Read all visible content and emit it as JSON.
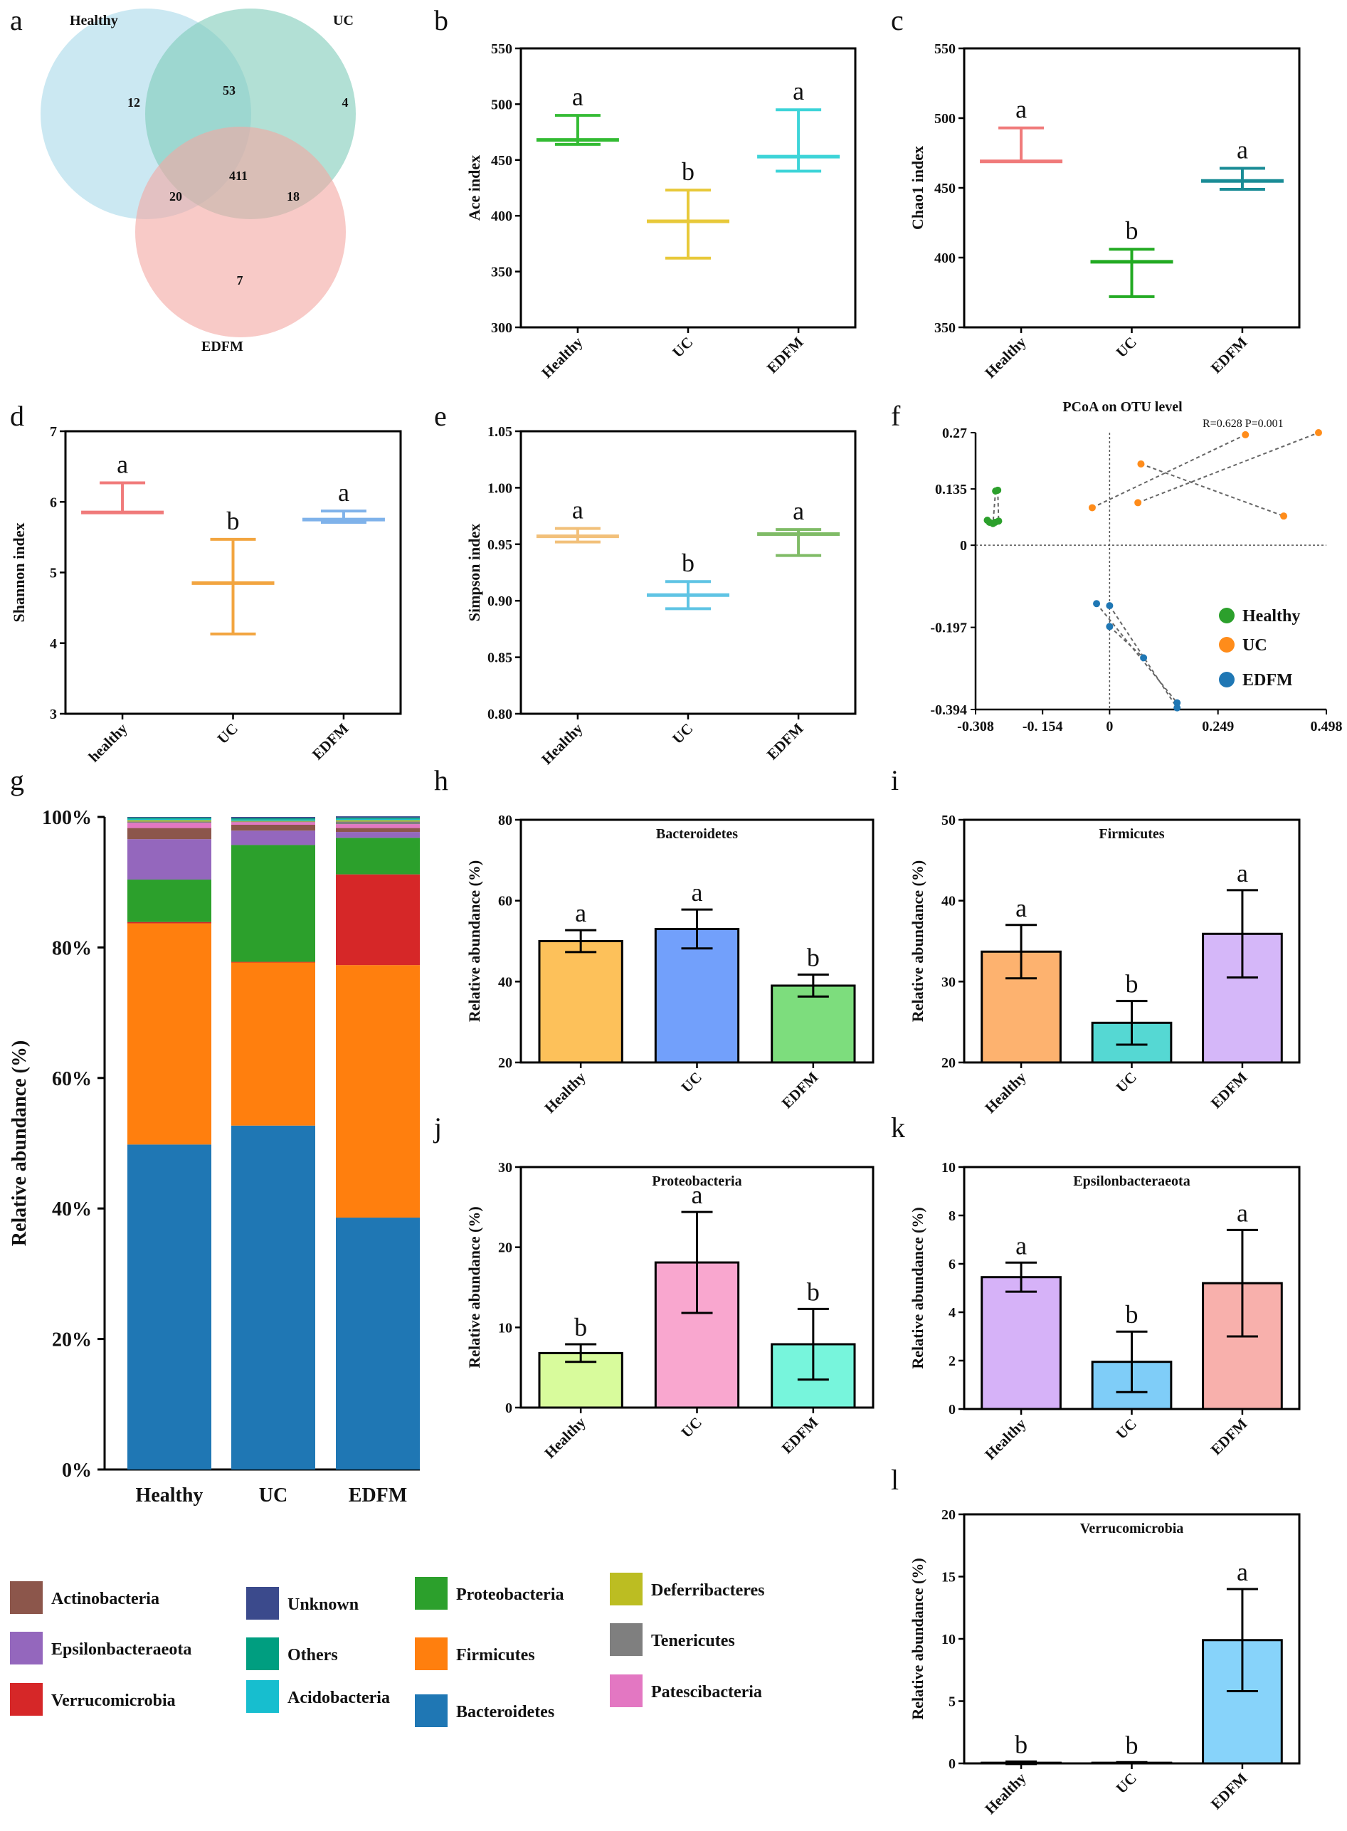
{
  "panel_labels": [
    "a",
    "b",
    "c",
    "d",
    "e",
    "f",
    "g",
    "h",
    "i",
    "j",
    "k",
    "l"
  ],
  "chart_data": [
    {
      "panel": "a",
      "type": "venn",
      "sets": [
        "Healthy",
        "UC",
        "EDFM"
      ],
      "regions": {
        "healthy_only": 12,
        "healthy_uc": 53,
        "uc_only": 4,
        "healthy_edfm": 20,
        "all": 411,
        "uc_edfm": 18,
        "edfm_only": 7
      },
      "colors": {
        "Healthy": "#a9d8ea",
        "UC": "#7fccb9",
        "EDFM": "#f4a7a1"
      }
    },
    {
      "panel": "b",
      "type": "errorbar",
      "ylabel": "Ace index",
      "ylim": [
        300,
        550
      ],
      "yticks": [
        300,
        350,
        400,
        450,
        500,
        550
      ],
      "categories": [
        "Healthy",
        "UC",
        "EDFM"
      ],
      "series": [
        {
          "name": "Healthy",
          "mean": 468,
          "low": 464,
          "high": 490,
          "color": "#33bb33",
          "letter": "a"
        },
        {
          "name": "UC",
          "mean": 395,
          "low": 362,
          "high": 423,
          "color": "#e8c93a",
          "letter": "b"
        },
        {
          "name": "EDFM",
          "mean": 453,
          "low": 440,
          "high": 495,
          "color": "#3dd4d8",
          "letter": "a"
        }
      ]
    },
    {
      "panel": "c",
      "type": "errorbar",
      "ylabel": "Chao1 index",
      "ylim": [
        350,
        550
      ],
      "yticks": [
        350,
        400,
        450,
        500,
        550
      ],
      "categories": [
        "Healthy",
        "UC",
        "EDFM"
      ],
      "series": [
        {
          "name": "Healthy",
          "mean": 469,
          "low": 469,
          "high": 493,
          "color": "#f07a7a",
          "letter": "a"
        },
        {
          "name": "UC",
          "mean": 397,
          "low": 372,
          "high": 406,
          "color": "#22aa22",
          "letter": "b"
        },
        {
          "name": "EDFM",
          "mean": 455,
          "low": 449,
          "high": 464,
          "color": "#1a8c96",
          "letter": "a"
        }
      ]
    },
    {
      "panel": "d",
      "type": "errorbar",
      "ylabel": "Shannon index",
      "ylim": [
        3,
        7
      ],
      "yticks": [
        3,
        4,
        5,
        6,
        7
      ],
      "categories": [
        "healthy",
        "UC",
        "EDFM"
      ],
      "series": [
        {
          "name": "healthy",
          "mean": 5.85,
          "low": 5.85,
          "high": 6.27,
          "color": "#f07a7a",
          "letter": "a"
        },
        {
          "name": "UC",
          "mean": 4.85,
          "low": 4.13,
          "high": 5.47,
          "color": "#f2a540",
          "letter": "b"
        },
        {
          "name": "EDFM",
          "mean": 5.75,
          "low": 5.71,
          "high": 5.87,
          "color": "#7fb2ea",
          "letter": "a"
        }
      ]
    },
    {
      "panel": "e",
      "type": "errorbar",
      "ylabel": "Simpson index",
      "ylim": [
        0.8,
        1.05
      ],
      "yticks": [
        0.8,
        0.85,
        0.9,
        0.95,
        1.0,
        1.05
      ],
      "ytick_labels": [
        "0.80",
        "0.85",
        "0.90",
        "0.95",
        "1.00",
        "1.05"
      ],
      "categories": [
        "Healthy",
        "UC",
        "EDFM"
      ],
      "series": [
        {
          "name": "Healthy",
          "mean": 0.957,
          "low": 0.952,
          "high": 0.964,
          "color": "#f2c07a",
          "letter": "a"
        },
        {
          "name": "UC",
          "mean": 0.905,
          "low": 0.893,
          "high": 0.917,
          "color": "#5fc4e4",
          "letter": "b"
        },
        {
          "name": "EDFM",
          "mean": 0.959,
          "low": 0.94,
          "high": 0.963,
          "color": "#7fbb66",
          "letter": "a"
        }
      ]
    },
    {
      "panel": "f",
      "type": "scatter",
      "title": "PCoA on OTU level",
      "annotation": "R=0.628   P=0.001",
      "xlim": [
        -0.308,
        0.498
      ],
      "ylim": [
        -0.394,
        0.27
      ],
      "xticks": [
        -0.308,
        -0.154,
        0,
        0.249,
        0.498
      ],
      "xtick_labels": [
        "-0.308",
        "-0. 154",
        "0",
        "0.249",
        "0.498"
      ],
      "yticks": [
        0.27,
        0.135,
        0,
        -0.197,
        -0.394
      ],
      "ytick_labels": [
        "0.27",
        "0.135",
        "0",
        "-0.197",
        "-0.394"
      ],
      "legend": [
        "Healthy",
        "UC",
        "EDFM"
      ],
      "series": [
        {
          "name": "Healthy",
          "color": "#2ca02c",
          "points": [
            [
              -0.281,
              0.06
            ],
            [
              -0.276,
              0.055
            ],
            [
              -0.268,
              0.052
            ],
            [
              -0.263,
              0.055
            ],
            [
              -0.255,
              0.058
            ],
            [
              -0.262,
              0.13
            ],
            [
              -0.257,
              0.132
            ]
          ]
        },
        {
          "name": "UC",
          "color": "#ff8c1a",
          "points": [
            [
              -0.04,
              0.09
            ],
            [
              0.072,
              0.195
            ],
            [
              0.065,
              0.102
            ],
            [
              0.312,
              0.265
            ],
            [
              0.48,
              0.27
            ],
            [
              0.4,
              0.07
            ]
          ]
        },
        {
          "name": "EDFM",
          "color": "#1f77b4",
          "points": [
            [
              -0.03,
              -0.14
            ],
            [
              0.0,
              -0.145
            ],
            [
              0.0,
              -0.195
            ],
            [
              0.078,
              -0.27
            ],
            [
              0.155,
              -0.378
            ],
            [
              0.155,
              -0.39
            ]
          ]
        }
      ],
      "links": [
        [
          [
            -0.262,
            0.13
          ],
          [
            -0.268,
            0.052
          ]
        ],
        [
          [
            -0.257,
            0.132
          ],
          [
            -0.255,
            0.058
          ]
        ],
        [
          [
            -0.04,
            0.09
          ],
          [
            0.312,
            0.265
          ]
        ],
        [
          [
            0.072,
            0.195
          ],
          [
            0.4,
            0.07
          ]
        ],
        [
          [
            0.065,
            0.102
          ],
          [
            0.48,
            0.27
          ]
        ],
        [
          [
            -0.03,
            -0.14
          ],
          [
            0.155,
            -0.378
          ]
        ],
        [
          [
            0.0,
            -0.145
          ],
          [
            0.155,
            -0.39
          ]
        ],
        [
          [
            0.0,
            -0.195
          ],
          [
            0.078,
            -0.27
          ]
        ]
      ]
    },
    {
      "panel": "g",
      "type": "stacked_bar",
      "ylabel": "Relative abundance (%)",
      "ylim": [
        0,
        100
      ],
      "yticks": [
        0,
        20,
        40,
        60,
        80,
        100
      ],
      "ytick_labels": [
        "0%",
        "20%",
        "40%",
        "60%",
        "80%",
        "100%"
      ],
      "categories": [
        "Healthy",
        "UC",
        "EDFM"
      ],
      "series": [
        {
          "name": "Bacteroidetes",
          "color": "#1f77b4",
          "values": [
            49.8,
            52.7,
            38.6
          ]
        },
        {
          "name": "Firmicutes",
          "color": "#ff7f0e",
          "values": [
            33.9,
            25.0,
            38.7
          ]
        },
        {
          "name": "Verrucomicrobia",
          "color": "#d62728",
          "values": [
            0.2,
            0.1,
            13.9
          ]
        },
        {
          "name": "Proteobacteria",
          "color": "#2ca02c",
          "values": [
            6.5,
            17.9,
            5.6
          ]
        },
        {
          "name": "Epsilonbacteraeota",
          "color": "#9467bd",
          "values": [
            6.2,
            2.2,
            0.9
          ]
        },
        {
          "name": "Actinobacteria",
          "color": "#8c564b",
          "values": [
            1.7,
            0.9,
            0.6
          ]
        },
        {
          "name": "Patescibacteria",
          "color": "#e377c2",
          "values": [
            0.8,
            0.4,
            0.6
          ]
        },
        {
          "name": "Tenericutes",
          "color": "#7f7f7f",
          "values": [
            0.2,
            0.1,
            0.4
          ]
        },
        {
          "name": "Deferribacteres",
          "color": "#bcbd22",
          "values": [
            0.2,
            0.1,
            0.2
          ]
        },
        {
          "name": "Acidobacteria",
          "color": "#17becf",
          "values": [
            0.2,
            0.2,
            0.2
          ]
        },
        {
          "name": "Others",
          "color": "#009e80",
          "values": [
            0.2,
            0.2,
            0.2
          ]
        },
        {
          "name": "Unknown",
          "color": "#3b4a8c",
          "values": [
            0.1,
            0.2,
            0.2
          ]
        }
      ]
    },
    {
      "panel": "h",
      "type": "bar",
      "title": "Bacteroidetes",
      "ylabel": "Relative abundance (%)",
      "ylim": [
        20,
        80
      ],
      "yticks": [
        20,
        40,
        60,
        80
      ],
      "categories": [
        "Healthy",
        "UC",
        "EDFM"
      ],
      "values": [
        50,
        53,
        39
      ],
      "errors": [
        2.7,
        4.8,
        2.7
      ],
      "colors": [
        "#fdc15a",
        "#72a0fb",
        "#7ddd7d"
      ],
      "letters": [
        "a",
        "a",
        "b"
      ]
    },
    {
      "panel": "i",
      "type": "bar",
      "title": "Firmicutes",
      "ylabel": "Relative abundance (%)",
      "ylim": [
        20,
        50
      ],
      "yticks": [
        20,
        30,
        40,
        50
      ],
      "categories": [
        "Healthy",
        "UC",
        "EDFM"
      ],
      "values": [
        33.7,
        24.9,
        35.9
      ],
      "errors": [
        3.3,
        2.7,
        5.4
      ],
      "colors": [
        "#fdb26f",
        "#55d8d3",
        "#d5b7f9"
      ],
      "letters": [
        "a",
        "b",
        "a"
      ]
    },
    {
      "panel": "j",
      "type": "bar",
      "title": "Proteobacteria",
      "ylabel": "Relative abundance (%)",
      "ylim": [
        0,
        30
      ],
      "yticks": [
        0,
        10,
        20,
        30
      ],
      "categories": [
        "Healthy",
        "UC",
        "EDFM"
      ],
      "values": [
        6.8,
        18.1,
        7.9
      ],
      "errors": [
        1.1,
        6.3,
        4.4
      ],
      "colors": [
        "#d8fb9c",
        "#f9a7cf",
        "#77f5dc"
      ],
      "letters": [
        "b",
        "a",
        "b"
      ]
    },
    {
      "panel": "k",
      "type": "bar",
      "title": "Epsilonbacteraeota",
      "ylabel": "Relative abundance (%)",
      "ylim": [
        0,
        10
      ],
      "yticks": [
        0,
        2,
        4,
        6,
        8,
        10
      ],
      "categories": [
        "Healthy",
        "UC",
        "EDFM"
      ],
      "values": [
        5.45,
        1.95,
        5.2
      ],
      "errors": [
        0.6,
        1.25,
        2.2
      ],
      "colors": [
        "#d6b2f8",
        "#7fcdf8",
        "#f8b0ac"
      ],
      "letters": [
        "a",
        "b",
        "a"
      ]
    },
    {
      "panel": "l",
      "type": "bar",
      "title": "Verrucomicrobia",
      "ylabel": "Relative abundance (%)",
      "ylim": [
        0,
        20
      ],
      "yticks": [
        0,
        5,
        10,
        15,
        20
      ],
      "categories": [
        "Healthy",
        "UC",
        "EDFM"
      ],
      "values": [
        0.05,
        0.05,
        9.9
      ],
      "errors": [
        0.1,
        0.05,
        4.1
      ],
      "colors": [
        "#f0d0a0",
        "#b0d0f0",
        "#87d3fa"
      ],
      "letters": [
        "b",
        "b",
        "a"
      ]
    }
  ]
}
